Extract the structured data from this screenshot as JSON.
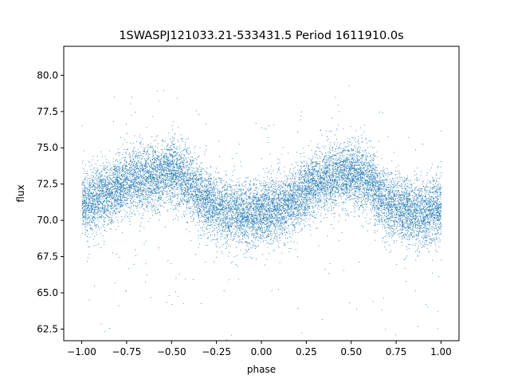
{
  "chart_data": {
    "type": "scatter",
    "title": "1SWASPJ121033.21-533431.5 Period 1611910.0s",
    "xlabel": "phase",
    "ylabel": "flux",
    "xlim": [
      -1.1,
      1.1
    ],
    "ylim": [
      61.7,
      82.0
    ],
    "xticks": [
      -1.0,
      -0.75,
      -0.5,
      -0.25,
      0.0,
      0.25,
      0.5,
      0.75,
      1.0
    ],
    "xtick_labels": [
      "−1.00",
      "−0.75",
      "−0.50",
      "−0.25",
      "0.00",
      "0.25",
      "0.50",
      "0.75",
      "1.00"
    ],
    "yticks": [
      62.5,
      65.0,
      67.5,
      70.0,
      72.5,
      75.0,
      77.5,
      80.0
    ],
    "ytick_labels": [
      "62.5",
      "65.0",
      "67.5",
      "70.0",
      "72.5",
      "75.0",
      "77.5",
      "80.0"
    ],
    "grid": false,
    "marker_color": "#1f77b4",
    "series": [
      {
        "phase_profile": {
          "x": [
            -1.0,
            -0.9,
            -0.8,
            -0.7,
            -0.6,
            -0.5,
            -0.4,
            -0.3,
            -0.2,
            -0.1,
            0.0,
            0.1,
            0.2,
            0.3,
            0.4,
            0.5,
            0.6,
            0.7,
            0.8,
            0.9,
            1.0
          ],
          "y": [
            71.0,
            71.6,
            72.3,
            72.9,
            73.0,
            73.4,
            72.6,
            71.2,
            70.7,
            70.4,
            70.5,
            70.8,
            71.6,
            72.6,
            72.9,
            73.4,
            72.6,
            71.2,
            70.7,
            70.4,
            71.0
          ]
        },
        "y_spread": 1.1,
        "x_range": [
          -1.0,
          1.0
        ],
        "approx_points": 14000
      }
    ]
  }
}
